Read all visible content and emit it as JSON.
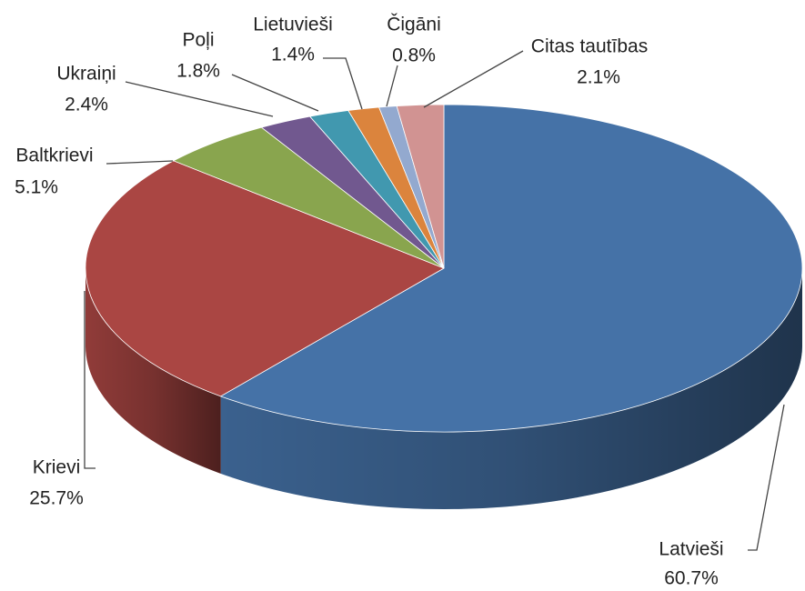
{
  "chart_data": {
    "type": "pie3d",
    "categories": [
      "Latvieši",
      "Krievi",
      "Baltkrievi",
      "Ukraiņi",
      "Poļi",
      "Lietuvieši",
      "Čigāni",
      "Citas tautības"
    ],
    "values": [
      60.7,
      25.7,
      5.1,
      2.4,
      1.8,
      1.4,
      0.8,
      2.1
    ],
    "value_labels": [
      "60.7%",
      "25.7%",
      "5.1%",
      "2.4%",
      "1.8%",
      "1.4%",
      "0.8%",
      "2.1%"
    ],
    "colors": [
      "#4572a7",
      "#aa4643",
      "#89a54e",
      "#71588f",
      "#4198af",
      "#db843d",
      "#93a9cf",
      "#d19392"
    ]
  }
}
